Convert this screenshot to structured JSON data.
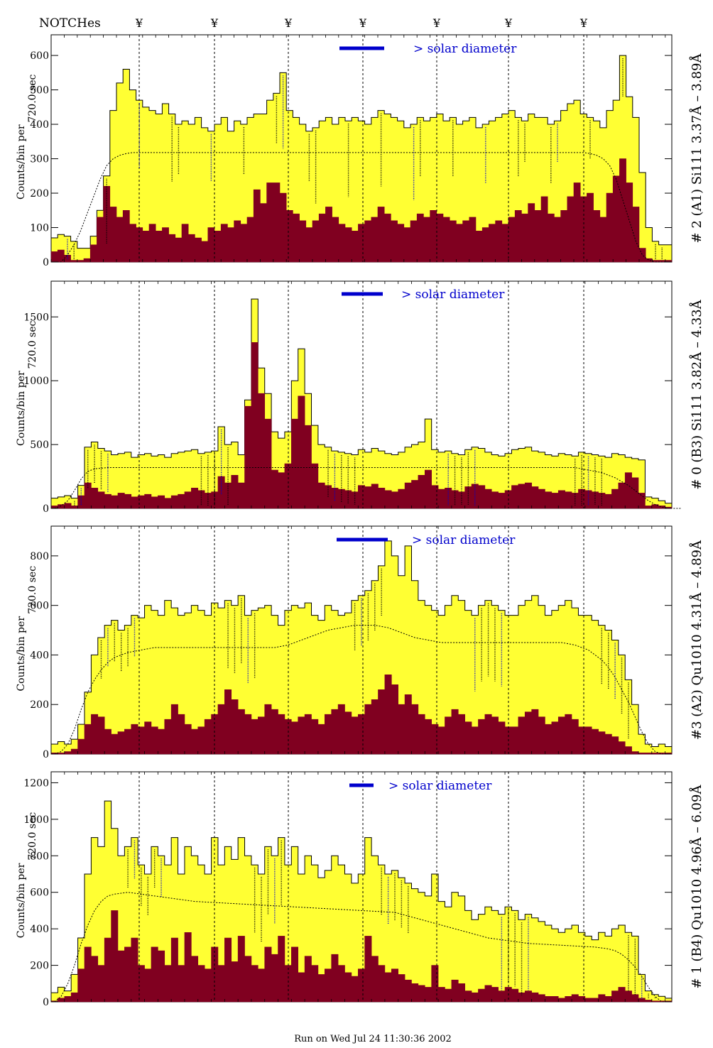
{
  "header": {
    "notches_label": "NOTCHes",
    "notch_symbol": "¥"
  },
  "footer": {
    "run_text": "Run on Wed Jul 24 11:30:36 2002"
  },
  "colors": {
    "total": "#ffff33",
    "flare": "#800020",
    "solar_bar": "#0000cc",
    "label_blue": "#0000cc",
    "label_purple": "#7a007a"
  },
  "chart_data": [
    {
      "type": "area",
      "name": "# 2 (A1) Si111  3.37Å – 3.89Å",
      "ylabel_top": "720.0 sec",
      "ylabel": "Counts/bin per",
      "annotation": "> solar diameter",
      "ylim": [
        0,
        660
      ],
      "yticks": [
        0,
        100,
        200,
        300,
        400,
        500,
        600
      ],
      "total": [
        70,
        80,
        75,
        60,
        40,
        40,
        75,
        150,
        250,
        440,
        520,
        560,
        500,
        470,
        450,
        440,
        430,
        460,
        430,
        400,
        410,
        400,
        420,
        390,
        380,
        400,
        420,
        380,
        410,
        400,
        420,
        430,
        430,
        470,
        490,
        550,
        440,
        420,
        400,
        380,
        390,
        410,
        420,
        400,
        420,
        410,
        420,
        410,
        400,
        420,
        440,
        430,
        420,
        410,
        390,
        400,
        420,
        410,
        420,
        430,
        410,
        420,
        400,
        410,
        420,
        390,
        400,
        410,
        420,
        430,
        440,
        420,
        410,
        430,
        420,
        420,
        400,
        410,
        440,
        460,
        470,
        430,
        420,
        410,
        390,
        440,
        470,
        600,
        480,
        420,
        260,
        100,
        60,
        50,
        50
      ],
      "flare": [
        30,
        35,
        20,
        5,
        5,
        10,
        50,
        130,
        220,
        160,
        130,
        150,
        110,
        100,
        90,
        110,
        90,
        100,
        80,
        70,
        110,
        80,
        70,
        60,
        100,
        90,
        110,
        100,
        120,
        110,
        130,
        210,
        170,
        230,
        230,
        200,
        150,
        140,
        120,
        100,
        120,
        140,
        160,
        130,
        110,
        100,
        90,
        110,
        120,
        130,
        160,
        140,
        120,
        110,
        100,
        120,
        140,
        130,
        150,
        140,
        130,
        120,
        110,
        120,
        130,
        90,
        100,
        110,
        120,
        110,
        130,
        150,
        140,
        170,
        150,
        190,
        140,
        130,
        150,
        190,
        230,
        190,
        200,
        150,
        130,
        200,
        250,
        300,
        230,
        160,
        40,
        10,
        5,
        5,
        5
      ],
      "reference": [
        0,
        0,
        20,
        50,
        90,
        140,
        190,
        240,
        280,
        300,
        310,
        315,
        318,
        318,
        318,
        318,
        318,
        318,
        318,
        318,
        318,
        318,
        318,
        318,
        318,
        318,
        318,
        318,
        318,
        318,
        318,
        318,
        318,
        318,
        318,
        318,
        318,
        318,
        318,
        318,
        318,
        318,
        318,
        318,
        318,
        318,
        318,
        318,
        318,
        318,
        318,
        318,
        318,
        318,
        318,
        318,
        318,
        318,
        318,
        318,
        318,
        318,
        318,
        318,
        318,
        318,
        318,
        318,
        318,
        318,
        318,
        318,
        318,
        318,
        318,
        318,
        318,
        318,
        318,
        318,
        318,
        318,
        315,
        310,
        300,
        280,
        240,
        180,
        120,
        60,
        20,
        5,
        0,
        0,
        0
      ]
    },
    {
      "type": "area",
      "name": "# 0 (B3) Si111  3.82Å – 4.33Å",
      "ylabel_top": "720.0 sec",
      "ylabel": "Counts/bin per",
      "annotation": "> solar diameter",
      "ylim": [
        0,
        1780
      ],
      "yticks": [
        0,
        500,
        1000,
        1500
      ],
      "total": [
        80,
        90,
        100,
        80,
        180,
        480,
        520,
        470,
        450,
        420,
        430,
        440,
        400,
        420,
        430,
        410,
        420,
        400,
        430,
        440,
        450,
        460,
        430,
        440,
        450,
        640,
        500,
        520,
        420,
        850,
        1640,
        1100,
        900,
        600,
        550,
        600,
        1000,
        1250,
        900,
        650,
        500,
        480,
        450,
        440,
        430,
        420,
        460,
        440,
        470,
        450,
        430,
        420,
        440,
        480,
        500,
        520,
        700,
        460,
        440,
        450,
        430,
        420,
        460,
        480,
        470,
        440,
        420,
        410,
        430,
        460,
        470,
        480,
        450,
        440,
        420,
        410,
        430,
        420,
        410,
        440,
        430,
        420,
        410,
        400,
        430,
        420,
        400,
        390,
        380,
        90,
        80,
        60,
        40
      ],
      "flare": [
        20,
        30,
        40,
        20,
        100,
        200,
        160,
        130,
        110,
        100,
        120,
        110,
        90,
        100,
        110,
        90,
        100,
        80,
        100,
        110,
        130,
        160,
        140,
        120,
        130,
        250,
        200,
        260,
        200,
        800,
        1300,
        900,
        700,
        300,
        280,
        350,
        700,
        880,
        650,
        350,
        200,
        180,
        160,
        150,
        140,
        130,
        180,
        170,
        190,
        160,
        140,
        130,
        150,
        200,
        220,
        260,
        300,
        180,
        150,
        160,
        140,
        130,
        170,
        190,
        180,
        150,
        130,
        120,
        140,
        180,
        190,
        200,
        170,
        150,
        130,
        120,
        140,
        130,
        120,
        150,
        140,
        130,
        120,
        110,
        150,
        200,
        280,
        240,
        120,
        20,
        30,
        20,
        10
      ],
      "reference": [
        0,
        20,
        60,
        140,
        230,
        290,
        310,
        315,
        320,
        320,
        320,
        320,
        320,
        320,
        320,
        320,
        320,
        320,
        320,
        320,
        320,
        320,
        320,
        320,
        320,
        320,
        320,
        320,
        320,
        320,
        320,
        320,
        320,
        320,
        320,
        320,
        320,
        320,
        320,
        320,
        320,
        320,
        320,
        320,
        320,
        320,
        320,
        320,
        320,
        320,
        320,
        320,
        320,
        320,
        320,
        320,
        320,
        320,
        320,
        320,
        320,
        320,
        320,
        320,
        320,
        320,
        320,
        320,
        320,
        320,
        320,
        320,
        320,
        320,
        320,
        320,
        320,
        320,
        320,
        310,
        300,
        290,
        280,
        260,
        240,
        210,
        180,
        140,
        100,
        60,
        30,
        10,
        0,
        0,
        0
      ]
    },
    {
      "type": "area",
      "name": "#3 (A2) Qu1010  4.31Å – 4.89Å",
      "ylabel_top": "720.0 sec",
      "ylabel": "Counts/bin per",
      "annotation": "> solar diameter",
      "ylim": [
        0,
        920
      ],
      "yticks": [
        0,
        200,
        400,
        600,
        800
      ],
      "total": [
        40,
        50,
        40,
        60,
        120,
        250,
        400,
        470,
        520,
        540,
        500,
        520,
        560,
        550,
        600,
        580,
        560,
        620,
        590,
        560,
        570,
        600,
        580,
        560,
        610,
        590,
        620,
        600,
        640,
        560,
        580,
        590,
        600,
        560,
        520,
        580,
        600,
        590,
        610,
        560,
        540,
        600,
        580,
        560,
        570,
        620,
        640,
        660,
        700,
        760,
        860,
        800,
        720,
        840,
        700,
        620,
        600,
        580,
        560,
        600,
        640,
        620,
        580,
        560,
        600,
        620,
        600,
        580,
        560,
        560,
        600,
        620,
        640,
        600,
        560,
        580,
        600,
        620,
        590,
        560,
        560,
        540,
        520,
        500,
        460,
        400,
        300,
        200,
        80,
        40,
        30,
        40,
        30
      ],
      "flare": [
        5,
        5,
        10,
        20,
        60,
        120,
        160,
        150,
        100,
        80,
        90,
        100,
        120,
        110,
        130,
        110,
        100,
        140,
        200,
        160,
        120,
        100,
        110,
        140,
        160,
        200,
        260,
        220,
        180,
        160,
        140,
        150,
        200,
        180,
        160,
        140,
        130,
        150,
        160,
        140,
        120,
        160,
        180,
        200,
        170,
        150,
        160,
        200,
        220,
        260,
        320,
        280,
        200,
        240,
        200,
        160,
        140,
        120,
        110,
        150,
        180,
        160,
        130,
        110,
        140,
        160,
        150,
        130,
        110,
        110,
        150,
        170,
        180,
        150,
        120,
        130,
        150,
        160,
        140,
        110,
        110,
        100,
        90,
        80,
        70,
        50,
        30,
        10,
        5,
        5,
        5,
        5,
        5
      ],
      "reference": [
        0,
        10,
        40,
        100,
        180,
        250,
        300,
        340,
        370,
        390,
        400,
        410,
        415,
        420,
        425,
        430,
        430,
        430,
        430,
        430,
        430,
        430,
        430,
        430,
        430,
        430,
        430,
        430,
        430,
        430,
        430,
        430,
        430,
        430,
        435,
        440,
        450,
        460,
        470,
        480,
        490,
        500,
        505,
        510,
        515,
        520,
        520,
        520,
        520,
        515,
        510,
        500,
        490,
        480,
        470,
        465,
        460,
        455,
        450,
        450,
        450,
        450,
        450,
        450,
        450,
        450,
        450,
        450,
        450,
        450,
        450,
        450,
        450,
        450,
        450,
        450,
        450,
        445,
        440,
        430,
        420,
        400,
        380,
        350,
        310,
        260,
        210,
        150,
        90,
        40,
        10,
        0,
        0
      ]
    },
    {
      "type": "area",
      "name": "# 1 (B4) Qu1010 4.96Å – 6.09Å",
      "ylabel_top": "720.0 sec",
      "ylabel": "Counts/bin per",
      "annotation": "> solar diameter",
      "ylim": [
        0,
        1260
      ],
      "yticks": [
        0,
        200,
        400,
        600,
        800,
        1000,
        1200
      ],
      "total": [
        50,
        80,
        60,
        150,
        350,
        700,
        900,
        850,
        1100,
        950,
        800,
        850,
        900,
        750,
        700,
        850,
        800,
        750,
        900,
        700,
        850,
        800,
        750,
        700,
        900,
        750,
        850,
        780,
        900,
        800,
        750,
        700,
        850,
        800,
        900,
        750,
        850,
        700,
        800,
        750,
        680,
        720,
        800,
        750,
        700,
        650,
        700,
        900,
        800,
        750,
        700,
        720,
        680,
        650,
        620,
        600,
        580,
        700,
        550,
        520,
        600,
        580,
        500,
        450,
        480,
        520,
        500,
        480,
        520,
        500,
        450,
        480,
        460,
        440,
        420,
        400,
        380,
        400,
        420,
        380,
        360,
        340,
        380,
        360,
        400,
        420,
        380,
        360,
        150,
        60,
        40,
        30,
        20
      ],
      "flare": [
        5,
        20,
        30,
        50,
        180,
        300,
        250,
        200,
        350,
        500,
        280,
        300,
        350,
        200,
        180,
        300,
        280,
        200,
        350,
        200,
        380,
        250,
        200,
        180,
        300,
        200,
        350,
        220,
        360,
        250,
        200,
        180,
        300,
        260,
        360,
        200,
        300,
        160,
        250,
        200,
        150,
        180,
        260,
        200,
        160,
        140,
        180,
        360,
        250,
        200,
        160,
        180,
        150,
        120,
        100,
        90,
        80,
        200,
        80,
        70,
        120,
        100,
        60,
        50,
        70,
        90,
        80,
        60,
        80,
        70,
        50,
        60,
        50,
        40,
        30,
        30,
        20,
        30,
        40,
        30,
        20,
        20,
        40,
        30,
        60,
        80,
        60,
        40,
        20,
        10,
        5,
        5,
        5
      ],
      "reference": [
        0,
        30,
        100,
        200,
        320,
        420,
        500,
        550,
        580,
        590,
        595,
        600,
        595,
        590,
        585,
        580,
        575,
        570,
        565,
        560,
        555,
        550,
        548,
        546,
        544,
        542,
        540,
        538,
        536,
        534,
        532,
        530,
        528,
        526,
        524,
        522,
        520,
        518,
        516,
        514,
        512,
        510,
        508,
        506,
        504,
        502,
        500,
        498,
        496,
        494,
        492,
        490,
        480,
        470,
        460,
        450,
        440,
        430,
        420,
        410,
        400,
        390,
        380,
        370,
        360,
        350,
        345,
        340,
        335,
        330,
        325,
        320,
        318,
        316,
        314,
        312,
        310,
        308,
        306,
        304,
        302,
        300,
        295,
        290,
        280,
        260,
        230,
        190,
        140,
        80,
        30,
        0,
        0
      ]
    }
  ]
}
